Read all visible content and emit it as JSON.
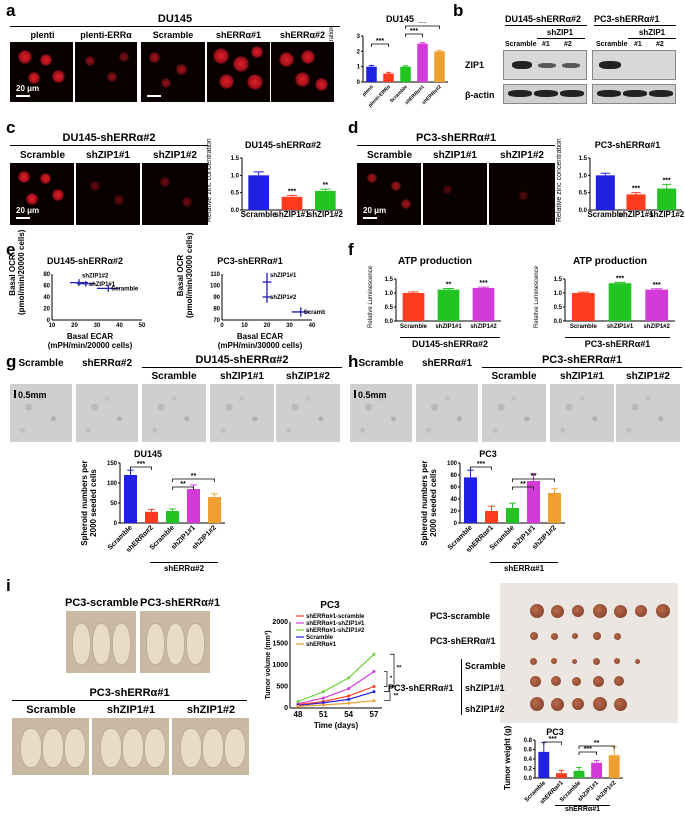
{
  "panels": {
    "a": "a",
    "b": "b",
    "c": "c",
    "d": "d",
    "e": "e",
    "f": "f",
    "g": "g",
    "h": "h",
    "i": "i"
  },
  "a": {
    "title": "DU145",
    "images": [
      "plenti",
      "plenti-ERRα",
      "Scramble",
      "shERRα#1",
      "shERRα#2"
    ],
    "scale": "20 μm",
    "chart_title": "DU145",
    "ylabel": "Relative zinc concentration"
  },
  "b": {
    "group1": "DU145-shERRα#2",
    "group2": "PC3-shERRα#1",
    "subgroup": "shZIP1",
    "lanes1": [
      "Scramble",
      "#1",
      "#2"
    ],
    "lanes2": [
      "Scramble",
      "#1",
      "#2"
    ],
    "row1": "ZIP1",
    "row2": "β-actin"
  },
  "c": {
    "title": "DU145-shERRα#2",
    "images": [
      "Scramble",
      "shZIP1#1",
      "shZIP1#2"
    ],
    "scale": "20 μm",
    "chart_title": "DU145-shERRα#2",
    "ylabel": "Relative zinc concentration"
  },
  "d": {
    "title": "PC3-shERRα#1",
    "images": [
      "Scramble",
      "shZIP1#1",
      "shZIP1#2"
    ],
    "scale": "20 μm",
    "chart_title": "PC3-shERRα#1",
    "ylabel": "Relative zinc concentration"
  },
  "e": {
    "left_title": "DU145-shERRα#2",
    "right_title": "PC3-shERRα#1",
    "left_ylabel1": "Basal OCR",
    "left_ylabel2": "(pmol/min/20000 cells)",
    "left_xlabel1": "Basal ECAR",
    "left_xlabel2": "(mPH/min/20000 cells)",
    "right_ylabel1": "Basal OCR",
    "right_ylabel2": "(pmol/min/30000 cells)",
    "right_xlabel1": "Basal ECAR",
    "right_xlabel2": "(mPH/min/30000 cells)"
  },
  "f": {
    "left_title": "ATP production",
    "right_title": "ATP production",
    "ylabel": "Relative Luminescence",
    "left_group": "DU145-shERRα#2",
    "right_group": "PC3-shERRα#1"
  },
  "g": {
    "images": [
      "Scramble",
      "shERRα#2",
      "Scramble",
      "shZIP1#1",
      "shZIP1#2"
    ],
    "group": "DU145-shERRα#2",
    "scale": "0.5mm",
    "chart_title": "DU145",
    "ylabel1": "Spheroid numbers per",
    "ylabel2": "2000 seeded cells",
    "xgroup": "shERRα#2"
  },
  "h": {
    "images": [
      "Scramble",
      "shERRα#1",
      "Scramble",
      "shZIP1#1",
      "shZIP1#2"
    ],
    "group": "PC3-shERRα#1",
    "scale": "0.5mm",
    "chart_title": "PC3",
    "ylabel1": "Spheroid numbers per",
    "ylabel2": "2000 seeded cells",
    "xgroup": "shERRα#1"
  },
  "i": {
    "photo1": "PC3-scramble",
    "photo2": "PC3-shERRα#1",
    "lower_title": "PC3-shERRα#1",
    "lower_images": [
      "Scramble",
      "shZIP1#1",
      "shZIP1#2"
    ],
    "tumor_labels": [
      "PC3-scramble",
      "PC3-shERRα#1",
      "Scramble",
      "shZIP1#1",
      "shZIP1#2"
    ],
    "tumor_group": "PC3-shERRα#1",
    "line_title": "PC3",
    "weight_title": "PC3",
    "weight_ylabel": "Tumor weight (g)",
    "weight_xgroup": "shERRα#1"
  },
  "chart_data": [
    {
      "id": "a",
      "type": "bar",
      "categories": [
        "plenti",
        "plenti-ERRα",
        "Scramble",
        "shERRα#1",
        "shERRα#2"
      ],
      "values": [
        1.0,
        0.55,
        1.0,
        2.5,
        2.0
      ],
      "errors": [
        0.08,
        0.08,
        0.06,
        0.06,
        0.06
      ],
      "ylim": [
        0,
        3
      ],
      "yticks": [
        "0",
        "1",
        "2",
        "3"
      ],
      "colors": [
        "#2020e0",
        "#ff3b1f",
        "#22c422",
        "#d23bd8",
        "#f0a030"
      ],
      "sig": [
        "***",
        "***",
        "***"
      ],
      "title": "DU145",
      "ylabel": "Relative zinc concentration"
    },
    {
      "id": "c",
      "type": "bar",
      "categories": [
        "Scramble",
        "shZIP1#1",
        "shZIP1#2"
      ],
      "values": [
        1.0,
        0.38,
        0.55
      ],
      "errors": [
        0.1,
        0.04,
        0.05
      ],
      "ylim": [
        0,
        1.5
      ],
      "yticks": [
        "0.0",
        "0.5",
        "1.0",
        "1.5"
      ],
      "colors": [
        "#2020e0",
        "#ff3b1f",
        "#22c422"
      ],
      "sig": [
        "",
        "***",
        "**"
      ],
      "title": "DU145-shERRα#2",
      "ylabel": "Relative zinc concentration"
    },
    {
      "id": "d",
      "type": "bar",
      "categories": [
        "Scramble",
        "shZIP1#1",
        "shZIP1#2"
      ],
      "values": [
        1.0,
        0.45,
        0.62
      ],
      "errors": [
        0.06,
        0.05,
        0.12
      ],
      "ylim": [
        0,
        1.5
      ],
      "yticks": [
        "0.0",
        "0.5",
        "1.0",
        "1.5"
      ],
      "colors": [
        "#2020e0",
        "#ff3b1f",
        "#22c422"
      ],
      "sig": [
        "",
        "***",
        "***"
      ],
      "title": "PC3-shERRα#1",
      "ylabel": "Relative zinc concentration"
    },
    {
      "id": "e1",
      "type": "scatter",
      "points": [
        {
          "label": "shZIP1#2",
          "x": 22,
          "y": 65,
          "ex": 4,
          "ey": 6
        },
        {
          "label": "shZIP1#1",
          "x": 25,
          "y": 63,
          "ex": 4,
          "ey": 5
        },
        {
          "label": "Scramble",
          "x": 35,
          "y": 55,
          "ex": 5,
          "ey": 6
        }
      ],
      "xlim": [
        10,
        50
      ],
      "ylim": [
        0,
        80
      ],
      "xticks": [
        "10",
        "20",
        "30",
        "40",
        "50"
      ],
      "yticks": [
        "0",
        "20",
        "40",
        "60",
        "80"
      ],
      "title": "DU145-shERRα#2",
      "xlabel": "Basal ECAR",
      "ylabel": "Basal OCR"
    },
    {
      "id": "e2",
      "type": "scatter",
      "points": [
        {
          "label": "shZIP1#1",
          "x": 20,
          "y": 103,
          "ex": 2,
          "ey": 8
        },
        {
          "label": "shZIP1#2",
          "x": 20,
          "y": 90,
          "ex": 2,
          "ey": 5
        },
        {
          "label": "Scramble",
          "x": 35,
          "y": 77,
          "ex": 4,
          "ey": 4
        }
      ],
      "xlim": [
        0,
        40
      ],
      "ylim": [
        70,
        110
      ],
      "xticks": [
        "0",
        "10",
        "20",
        "30",
        "40"
      ],
      "yticks": [
        "70",
        "80",
        "90",
        "100",
        "110"
      ],
      "title": "PC3-shERRα#1",
      "xlabel": "Basal ECAR",
      "ylabel": "Basal OCR"
    },
    {
      "id": "f1",
      "type": "bar",
      "categories": [
        "Scramble",
        "shZIP1#1",
        "shZIP1#2"
      ],
      "values": [
        1.0,
        1.12,
        1.18
      ],
      "errors": [
        0.04,
        0.04,
        0.03
      ],
      "ylim": [
        0,
        1.5
      ],
      "yticks": [
        "0.0",
        "0.5",
        "1.0",
        "1.5"
      ],
      "colors": [
        "#ff3b1f",
        "#22c422",
        "#d23bd8"
      ],
      "sig": [
        "",
        "**",
        "***"
      ],
      "title": "ATP production",
      "ylabel": "Relative Luminescence"
    },
    {
      "id": "f2",
      "type": "bar",
      "categories": [
        "Scramble",
        "shZIP1#1",
        "shZIP1#2"
      ],
      "values": [
        1.0,
        1.35,
        1.12
      ],
      "errors": [
        0.03,
        0.03,
        0.03
      ],
      "ylim": [
        0,
        1.5
      ],
      "yticks": [
        "0.0",
        "0.5",
        "1.0",
        "1.5"
      ],
      "colors": [
        "#ff3b1f",
        "#22c422",
        "#d23bd8"
      ],
      "sig": [
        "",
        "***",
        "***"
      ],
      "title": "ATP production",
      "ylabel": "Relative Luminescence"
    },
    {
      "id": "g",
      "type": "bar",
      "categories": [
        "Scramble",
        "shERRα#2",
        "Scramble",
        "shZIP1#1",
        "shZIP1#2"
      ],
      "values": [
        120,
        28,
        30,
        85,
        65
      ],
      "errors": [
        12,
        6,
        5,
        10,
        8
      ],
      "ylim": [
        0,
        150
      ],
      "yticks": [
        "0",
        "50",
        "100",
        "150"
      ],
      "colors": [
        "#2020e0",
        "#ff3b1f",
        "#22c422",
        "#d23bd8",
        "#f0a030"
      ],
      "sig": [
        "***",
        "**",
        "**"
      ],
      "title": "DU145",
      "ylabel": "Spheroid numbers per 2000 seeded cells"
    },
    {
      "id": "h",
      "type": "bar",
      "categories": [
        "Scramble",
        "shERRα#1",
        "Scramble",
        "shZIP1#1",
        "shZIP1#2"
      ],
      "values": [
        76,
        20,
        25,
        70,
        50
      ],
      "errors": [
        12,
        8,
        8,
        12,
        7
      ],
      "ylim": [
        0,
        100
      ],
      "yticks": [
        "0",
        "20",
        "40",
        "60",
        "80",
        "100"
      ],
      "colors": [
        "#2020e0",
        "#ff3b1f",
        "#22c422",
        "#d23bd8",
        "#f0a030"
      ],
      "sig": [
        "***",
        "**",
        "**"
      ],
      "title": "PC3",
      "ylabel": "Spheroid numbers per 2000 seeded cells"
    },
    {
      "id": "i1",
      "type": "line",
      "x": [
        48,
        51,
        54,
        57
      ],
      "xticks": [
        "48",
        "51",
        "54",
        "57"
      ],
      "yticks": [
        "0",
        "500",
        "1000",
        "1500",
        "2000"
      ],
      "ylim": [
        0,
        2000
      ],
      "xlabel": "Time (days)",
      "ylabel": "Tumor volume (mm³)",
      "title": "PC3",
      "series": [
        {
          "name": "shERRα#1-scramble",
          "color": "#ff3b1f",
          "values": [
            80,
            150,
            280,
            500
          ]
        },
        {
          "name": "shERRα#1-shZIP1#1",
          "color": "#d23bd8",
          "values": [
            100,
            230,
            450,
            850
          ]
        },
        {
          "name": "shERRα#1-shZIP1#2",
          "color": "#6ad33a",
          "values": [
            150,
            380,
            700,
            1250
          ]
        },
        {
          "name": "Scramble",
          "color": "#2020e0",
          "values": [
            60,
            120,
            200,
            380
          ]
        },
        {
          "name": "shERRα#1",
          "color": "#f0a030",
          "values": [
            40,
            70,
            110,
            170
          ]
        }
      ],
      "sig": [
        "*",
        "**",
        "**"
      ]
    },
    {
      "id": "i2",
      "type": "bar",
      "categories": [
        "Scramble",
        "shERRα#1",
        "Scramble",
        "shZIP1#1",
        "shZIP1#2"
      ],
      "values": [
        0.55,
        0.1,
        0.15,
        0.32,
        0.48
      ],
      "errors": [
        0.2,
        0.06,
        0.07,
        0.05,
        0.18
      ],
      "ylim": [
        0,
        0.8
      ],
      "yticks": [
        "0.0",
        "0.2",
        "0.4",
        "0.6",
        "0.8"
      ],
      "colors": [
        "#2020e0",
        "#ff3b1f",
        "#22c422",
        "#d23bd8",
        "#f0a030"
      ],
      "sig": [
        "***",
        "***",
        "**"
      ],
      "title": "PC3",
      "ylabel": "Tumor weight (g)"
    }
  ]
}
